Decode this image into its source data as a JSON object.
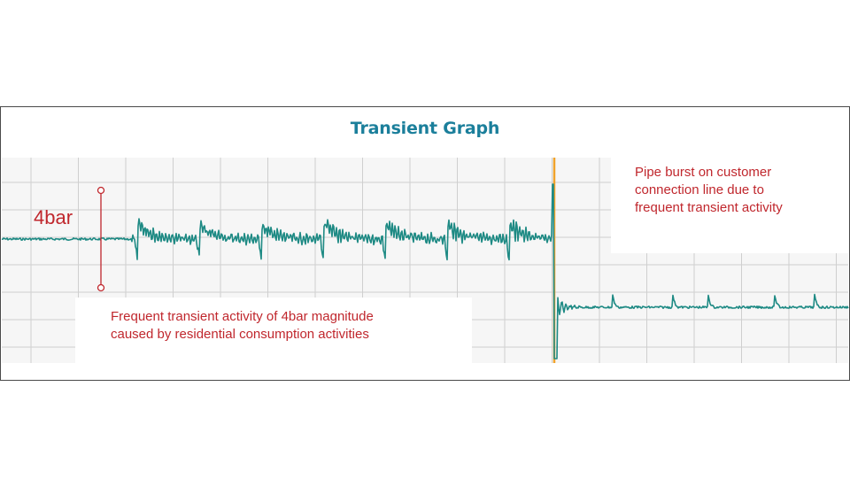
{
  "chart_data": {
    "type": "line",
    "title": "Transient Graph",
    "xlabel": "",
    "ylabel": "",
    "grid": true,
    "colors": {
      "signal": "#1e8a84",
      "event_marker": "#f0a22a",
      "annotation": "#c0272d",
      "title": "#1b7f9b",
      "grid": "#cfcfcf"
    },
    "magnitude_marker": {
      "label": "4bar",
      "value_bar": 4
    },
    "transient_events": [
      {
        "index": 1,
        "peak_bar": 3.0,
        "trough_bar": -2.5
      },
      {
        "index": 2,
        "peak_bar": 2.2,
        "trough_bar": -2.2
      },
      {
        "index": 3,
        "peak_bar": 2.0,
        "trough_bar": -2.3
      },
      {
        "index": 4,
        "peak_bar": 2.9,
        "trough_bar": -2.4
      },
      {
        "index": 5,
        "peak_bar": 2.5,
        "trough_bar": -2.3
      },
      {
        "index": 6,
        "peak_bar": 2.6,
        "trough_bar": -2.3
      },
      {
        "index": 7,
        "peak_bar": 2.8,
        "trough_bar": -2.3
      }
    ],
    "burst_event": {
      "pressure_drop_bar": 2.8
    },
    "annotations": [
      {
        "id": "left",
        "text": "Frequent transient activity of 4bar magnitude\ncaused by residential consumption activities"
      },
      {
        "id": "right",
        "text": "Pipe burst on customer\nconnection line due to\nfrequent transient activity"
      }
    ]
  }
}
